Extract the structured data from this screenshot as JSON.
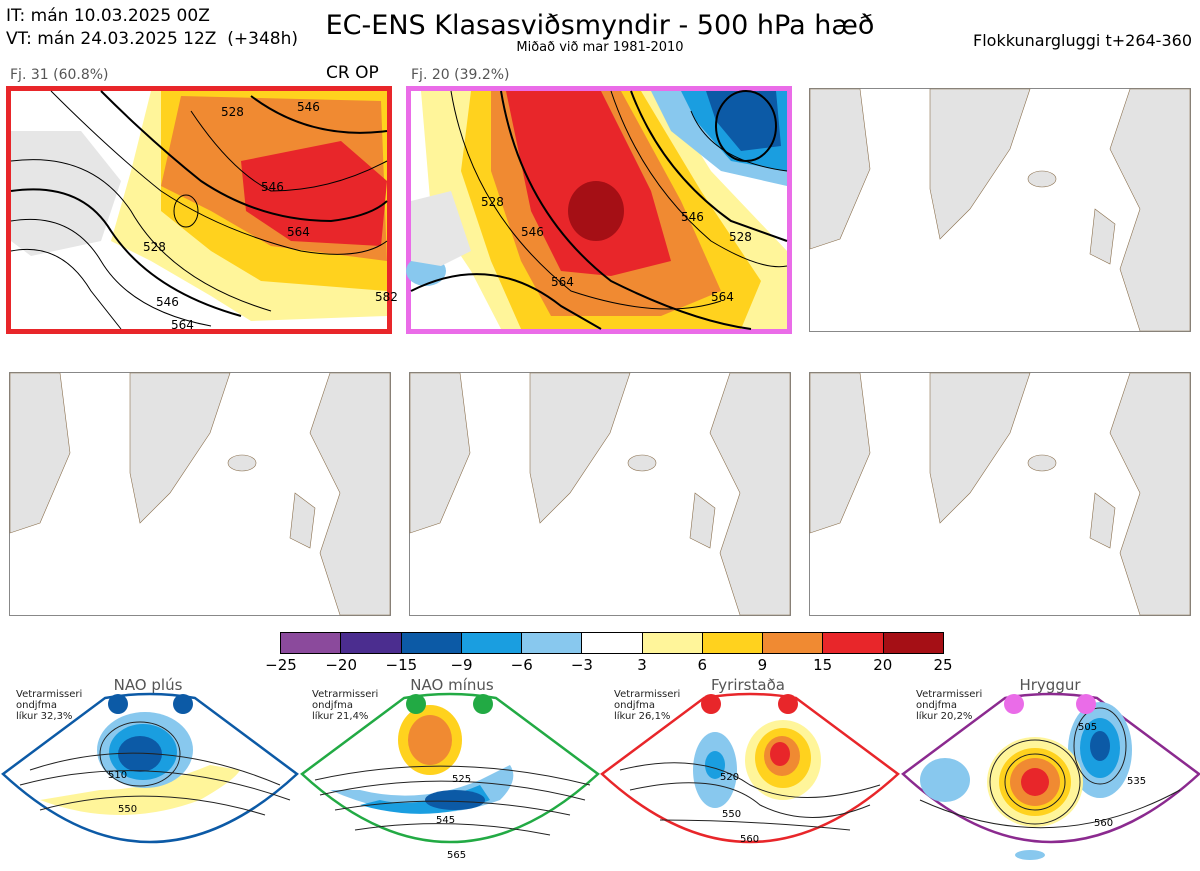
{
  "header": {
    "it_line": "IT: mán 10.03.2025 00Z",
    "vt_line": "VT: mán 24.03.2025 12Z  (+348h)",
    "title": "EC-ENS Klasasviðsmyndir - 500 hPa hæð",
    "subtitle": "Miðað við mar 1981-2010",
    "window": "Flokkunargluggi t+264-360"
  },
  "panels": [
    {
      "label": "Fj. 31 (60.8%)",
      "tag": "CR OP",
      "highlight": "#e8262a"
    },
    {
      "label": "Fj. 20 (39.2%)",
      "tag": "",
      "highlight": "#ea6ce8"
    },
    {
      "label": "",
      "tag": "",
      "highlight": ""
    },
    {
      "label": "",
      "tag": "",
      "highlight": ""
    },
    {
      "label": "",
      "tag": "",
      "highlight": ""
    },
    {
      "label": "",
      "tag": "",
      "highlight": ""
    }
  ],
  "contour_labels": {
    "panel1": [
      "528",
      "546",
      "564",
      "528",
      "546",
      "564",
      "546",
      "582"
    ],
    "panel2": [
      "528",
      "546",
      "564",
      "528",
      "546",
      "564"
    ]
  },
  "colorbar": {
    "ticks": [
      "−25",
      "−20",
      "−15",
      "−9",
      "−6",
      "−3",
      "3",
      "6",
      "9",
      "15",
      "20",
      "25"
    ],
    "colors": [
      "#8b4a9c",
      "#4b2d8f",
      "#0c5aa6",
      "#1a9ee0",
      "#88c8ee",
      "#ffffff",
      "#fff59a",
      "#ffd21e",
      "#f08a32",
      "#e8262a",
      "#a50f15"
    ]
  },
  "regimes": [
    {
      "name": "NAO plús",
      "stat1": "Vetrarmisseri",
      "stat2": "ondjfma",
      "stat3": "líkur 32,3%",
      "dot_color": "#0c5aa6",
      "border": "#0c5aa6",
      "contours": [
        "510",
        "550"
      ]
    },
    {
      "name": "NAO mínus",
      "stat1": "Vetrarmisseri",
      "stat2": "ondjfma",
      "stat3": "líkur 21,4%",
      "dot_color": "#22aa44",
      "border": "#22aa44",
      "contours": [
        "525",
        "545",
        "565"
      ]
    },
    {
      "name": "Fyrirstaða",
      "stat1": "Vetrarmisseri",
      "stat2": "ondjfma",
      "stat3": "líkur 26,1%",
      "dot_color": "#e8262a",
      "border": "#e8262a",
      "contours": [
        "520",
        "550",
        "560"
      ]
    },
    {
      "name": "Hryggur",
      "stat1": "Vetrarmisseri",
      "stat2": "ondjfma",
      "stat3": "líkur 20,2%",
      "dot_color": "#ea6ce8",
      "border": "#8b2a8f",
      "contours": [
        "505",
        "535",
        "560"
      ]
    }
  ]
}
